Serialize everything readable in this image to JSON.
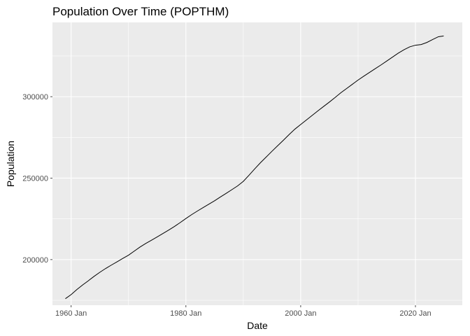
{
  "chart_data": {
    "type": "line",
    "title": "Population Over Time (POPTHM)",
    "xlabel": "Date",
    "ylabel": "Population",
    "x_ticks": [
      "1960 Jan",
      "1980 Jan",
      "2000 Jan",
      "2020 Jan"
    ],
    "x_tick_values": [
      "1960-01-01",
      "1980-01-01",
      "2000-01-01",
      "2020-01-01"
    ],
    "y_ticks": [
      "200000",
      "250000",
      "300000"
    ],
    "y_tick_values": [
      200000,
      250000,
      300000
    ],
    "xlim": [
      "1956-10-01",
      "2028-03-01"
    ],
    "ylim": [
      172000,
      345600
    ],
    "grid": true,
    "legend": "none",
    "colors": {
      "panel": "#ebebeb",
      "grid": "#ffffff",
      "line": "#000000",
      "tick": "#4d4d4d"
    },
    "series": [
      {
        "x": [
          "1959-01-01",
          "1960-01-01",
          "1961-01-01",
          "1962-01-01",
          "1963-01-01",
          "1964-01-01",
          "1965-01-01",
          "1966-01-01",
          "1967-01-01",
          "1968-01-01",
          "1969-01-01",
          "1970-01-01",
          "1971-01-01",
          "1972-01-01",
          "1973-01-01",
          "1974-01-01",
          "1975-01-01",
          "1976-01-01",
          "1977-01-01",
          "1978-01-01",
          "1979-01-01",
          "1980-01-01",
          "1981-01-01",
          "1982-01-01",
          "1983-01-01",
          "1984-01-01",
          "1985-01-01",
          "1986-01-01",
          "1987-01-01",
          "1988-01-01",
          "1989-01-01",
          "1990-01-01",
          "1991-01-01",
          "1992-01-01",
          "1993-01-01",
          "1994-01-01",
          "1995-01-01",
          "1996-01-01",
          "1997-01-01",
          "1998-01-01",
          "1999-01-01",
          "2000-01-01",
          "2001-01-01",
          "2002-01-01",
          "2003-01-01",
          "2004-01-01",
          "2005-01-01",
          "2006-01-01",
          "2007-01-01",
          "2008-01-01",
          "2009-01-01",
          "2010-01-01",
          "2011-01-01",
          "2012-01-01",
          "2013-01-01",
          "2014-01-01",
          "2015-01-01",
          "2016-01-01",
          "2017-01-01",
          "2018-01-01",
          "2019-01-01",
          "2020-01-01",
          "2021-01-01",
          "2022-01-01",
          "2023-01-01",
          "2024-01-01",
          "2024-12-01"
        ],
        "values": [
          176000,
          178500,
          181600,
          184400,
          187000,
          189700,
          192200,
          194500,
          196600,
          198600,
          200700,
          202700,
          205200,
          207700,
          209900,
          211900,
          213900,
          216000,
          218100,
          220300,
          222700,
          225200,
          227600,
          229800,
          231900,
          234000,
          236100,
          238400,
          240600,
          242900,
          245200,
          248000,
          251800,
          255700,
          259500,
          263000,
          266500,
          269900,
          273300,
          276800,
          280100,
          282900,
          285700,
          288500,
          291300,
          294000,
          296700,
          299500,
          302400,
          305000,
          307600,
          310200,
          312600,
          314900,
          317200,
          319500,
          321900,
          324300,
          326700,
          328800,
          330600,
          331600,
          332000,
          333300,
          335100,
          336800,
          337300
        ]
      }
    ]
  }
}
